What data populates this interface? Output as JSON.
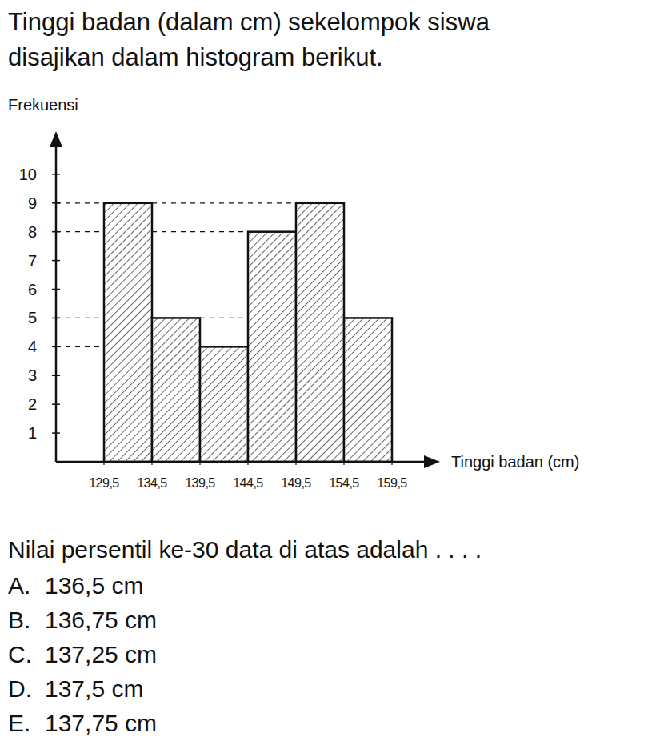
{
  "question": {
    "intro_lines": [
      "Tinggi badan (dalam cm) sekelompok siswa",
      "disajikan dalam histogram berikut."
    ],
    "prompt": "Nilai persentil ke-30 data di atas adalah . . . .",
    "options": [
      {
        "letter": "A.",
        "text": "136,5 cm"
      },
      {
        "letter": "B.",
        "text": "136,75 cm"
      },
      {
        "letter": "C.",
        "text": "137,25 cm"
      },
      {
        "letter": "D.",
        "text": "137,5 cm"
      },
      {
        "letter": "E.",
        "text": "137,75 cm"
      }
    ]
  },
  "chart_data": {
    "type": "histogram",
    "y_label": "Frekuensi",
    "x_label": "Tinggi badan (cm)",
    "bins": [
      129.5,
      134.5,
      139.5,
      144.5,
      149.5,
      154.5,
      159.5
    ],
    "values": [
      9,
      5,
      4,
      8,
      9,
      5
    ],
    "xlim": [
      124.5,
      164.5
    ],
    "ylim": [
      0,
      11.5
    ],
    "xticks": [
      {
        "value": 129.5,
        "label": "129,5"
      },
      {
        "value": 134.5,
        "label": "134,5"
      },
      {
        "value": 139.5,
        "label": "139,5"
      },
      {
        "value": 144.5,
        "label": "144,5"
      },
      {
        "value": 149.5,
        "label": "149,5"
      },
      {
        "value": 154.5,
        "label": "154,5"
      },
      {
        "value": 159.5,
        "label": "159,5"
      }
    ],
    "yticks": [
      1,
      2,
      3,
      4,
      5,
      6,
      7,
      8,
      9,
      10
    ]
  }
}
